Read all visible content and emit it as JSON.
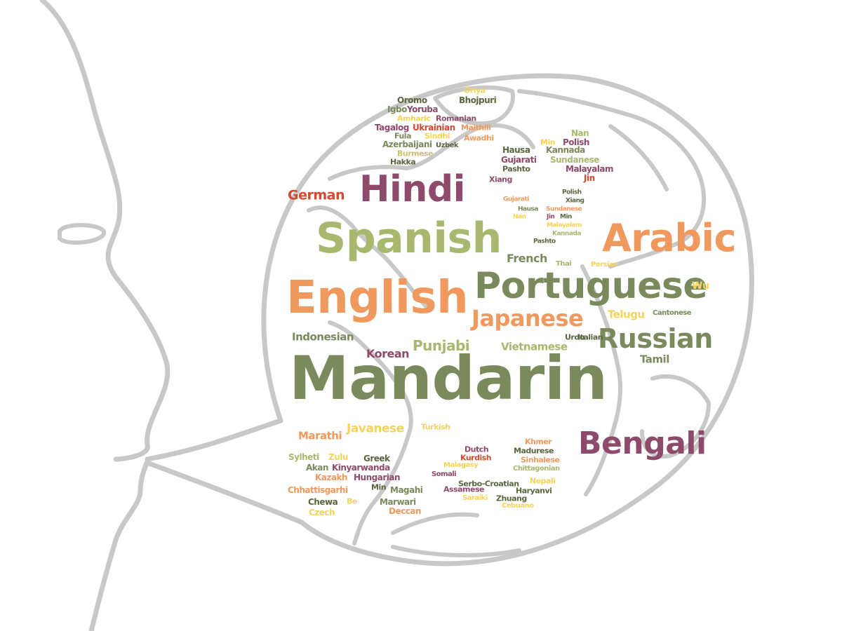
{
  "colors": {
    "outline": "#c8c8c8",
    "palette": [
      "#7a8a5c",
      "#8e4a6a",
      "#f0995e",
      "#cfc36a",
      "#a8b86e",
      "#d9472e",
      "#f6d35a",
      "#5a6640"
    ]
  },
  "words": [
    {
      "text": "Mandarin",
      "color": "#7a8a5c",
      "weight": 72
    },
    {
      "text": "English",
      "color": "#f0995e",
      "weight": 56
    },
    {
      "text": "Spanish",
      "color": "#a8b86e",
      "weight": 52
    },
    {
      "text": "Portuguese",
      "color": "#7a8a5c",
      "weight": 46
    },
    {
      "text": "Hindi",
      "color": "#8e4a6a",
      "weight": 46
    },
    {
      "text": "Arabic",
      "color": "#f0995e",
      "weight": 46
    },
    {
      "text": "Bengali",
      "color": "#8e4a6a",
      "weight": 40
    },
    {
      "text": "Russian",
      "color": "#7a8a5c",
      "weight": 34
    },
    {
      "text": "Japanese",
      "color": "#f0995e",
      "weight": 30
    },
    {
      "text": "Punjabi",
      "color": "#a8b86e",
      "weight": 20
    },
    {
      "text": "German",
      "color": "#d9472e",
      "weight": 18
    },
    {
      "text": "Javanese",
      "color": "#f6d35a",
      "weight": 16
    },
    {
      "text": "Korean",
      "color": "#8e4a6a",
      "weight": 16
    },
    {
      "text": "French",
      "color": "#7a8a5c",
      "weight": 16
    },
    {
      "text": "Vietnamese",
      "color": "#a8b86e",
      "weight": 15
    },
    {
      "text": "Tamil",
      "color": "#7a8a5c",
      "weight": 15
    },
    {
      "text": "Telugu",
      "color": "#f6d35a",
      "weight": 15
    },
    {
      "text": "Indonesian",
      "color": "#7a8a5c",
      "weight": 14
    },
    {
      "text": "Marathi",
      "color": "#f0995e",
      "weight": 14
    },
    {
      "text": "Wu",
      "color": "#f6d35a",
      "weight": 14
    },
    {
      "text": "Turkish",
      "color": "#f6d35a",
      "weight": 11
    },
    {
      "text": "Urdu",
      "color": "#5a6640",
      "weight": 11
    },
    {
      "text": "Italian",
      "color": "#5a6640",
      "weight": 11
    },
    {
      "text": "Thai",
      "color": "#a8b86e",
      "weight": 10
    },
    {
      "text": "Persian",
      "color": "#f6d35a",
      "weight": 10
    },
    {
      "text": "Cantonese",
      "color": "#7a8a5c",
      "weight": 10
    },
    {
      "text": "Oriya",
      "color": "#f6d35a",
      "weight": 11
    },
    {
      "text": "Bhojpuri",
      "color": "#5a6640",
      "weight": 12
    },
    {
      "text": "Oromo",
      "color": "#5a6640",
      "weight": 12
    },
    {
      "text": "Igbo",
      "color": "#7a8a5c",
      "weight": 12
    },
    {
      "text": "Yoruba",
      "color": "#8e4a6a",
      "weight": 12
    },
    {
      "text": "Amharic",
      "color": "#f6d35a",
      "weight": 11
    },
    {
      "text": "Romanian",
      "color": "#8e4a6a",
      "weight": 11
    },
    {
      "text": "Tagalog",
      "color": "#8e4a6a",
      "weight": 12
    },
    {
      "text": "Ukrainian",
      "color": "#d9472e",
      "weight": 12
    },
    {
      "text": "Maithili",
      "color": "#f0995e",
      "weight": 11
    },
    {
      "text": "Fula",
      "color": "#7a8a5c",
      "weight": 11
    },
    {
      "text": "Sindhi",
      "color": "#f6d35a",
      "weight": 11
    },
    {
      "text": "Awadhi",
      "color": "#f0995e",
      "weight": 11
    },
    {
      "text": "Azerbaijani",
      "color": "#7a8a5c",
      "weight": 12
    },
    {
      "text": "Uzbek",
      "color": "#5a6640",
      "weight": 10
    },
    {
      "text": "Burmese",
      "color": "#cfc36a",
      "weight": 11
    },
    {
      "text": "Hakka",
      "color": "#5a6640",
      "weight": 11
    },
    {
      "text": "Nan",
      "color": "#a8b86e",
      "weight": 12
    },
    {
      "text": "Min",
      "color": "#f6d35a",
      "weight": 11
    },
    {
      "text": "Polish",
      "color": "#8e4a6a",
      "weight": 12
    },
    {
      "text": "Hausa",
      "color": "#5a6640",
      "weight": 12
    },
    {
      "text": "Kannada",
      "color": "#7a8a5c",
      "weight": 12
    },
    {
      "text": "Gujarati",
      "color": "#8e4a6a",
      "weight": 12
    },
    {
      "text": "Sundanese",
      "color": "#a8b86e",
      "weight": 12
    },
    {
      "text": "Pashto",
      "color": "#5a6640",
      "weight": 11
    },
    {
      "text": "Malayalam",
      "color": "#8e4a6a",
      "weight": 12
    },
    {
      "text": "Xiang",
      "color": "#8e4a6a",
      "weight": 11
    },
    {
      "text": "Jin",
      "color": "#d9472e",
      "weight": 12
    },
    {
      "text": "Gujarati",
      "color": "#f0995e",
      "weight": 9
    },
    {
      "text": "Polish",
      "color": "#5a6640",
      "weight": 9
    },
    {
      "text": "Xiang",
      "color": "#5a6640",
      "weight": 9
    },
    {
      "text": "Hausa",
      "color": "#7a8a5c",
      "weight": 9
    },
    {
      "text": "Sundanese",
      "color": "#f0995e",
      "weight": 9
    },
    {
      "text": "Nan",
      "color": "#f6d35a",
      "weight": 9
    },
    {
      "text": "Jin",
      "color": "#8e4a6a",
      "weight": 9
    },
    {
      "text": "Min",
      "color": "#5a6640",
      "weight": 9
    },
    {
      "text": "Malayalam",
      "color": "#f6d35a",
      "weight": 9
    },
    {
      "text": "Kannada",
      "color": "#a8b86e",
      "weight": 9
    },
    {
      "text": "Pashto",
      "color": "#5a6640",
      "weight": 9
    },
    {
      "text": "Sylheti",
      "color": "#a8b86e",
      "weight": 12
    },
    {
      "text": "Zulu",
      "color": "#f6d35a",
      "weight": 12
    },
    {
      "text": "Greek",
      "color": "#5a6640",
      "weight": 12
    },
    {
      "text": "Akan",
      "color": "#7a8a5c",
      "weight": 12
    },
    {
      "text": "Kinyarwanda",
      "color": "#8e4a6a",
      "weight": 12
    },
    {
      "text": "Kazakh",
      "color": "#f0995e",
      "weight": 12
    },
    {
      "text": "Hungarian",
      "color": "#8e4a6a",
      "weight": 12
    },
    {
      "text": "Chhattisgarhi",
      "color": "#f0995e",
      "weight": 12
    },
    {
      "text": "Min",
      "color": "#5a6640",
      "weight": 11
    },
    {
      "text": "Magahi",
      "color": "#7a8a5c",
      "weight": 12
    },
    {
      "text": "Chewa",
      "color": "#5a6640",
      "weight": 12
    },
    {
      "text": "Be",
      "color": "#f6d35a",
      "weight": 11
    },
    {
      "text": "Marwari",
      "color": "#7a8a5c",
      "weight": 12
    },
    {
      "text": "Czech",
      "color": "#f6d35a",
      "weight": 12
    },
    {
      "text": "Deccan",
      "color": "#f0995e",
      "weight": 12
    },
    {
      "text": "Dutch",
      "color": "#8e4a6a",
      "weight": 11
    },
    {
      "text": "Kurdish",
      "color": "#d9472e",
      "weight": 11
    },
    {
      "text": "Malagasy",
      "color": "#f6d35a",
      "weight": 10
    },
    {
      "text": "Somali",
      "color": "#8e4a6a",
      "weight": 10
    },
    {
      "text": "Khmer",
      "color": "#f0995e",
      "weight": 11
    },
    {
      "text": "Madurese",
      "color": "#5a6640",
      "weight": 11
    },
    {
      "text": "Sinhalese",
      "color": "#f0995e",
      "weight": 11
    },
    {
      "text": "Chittagonian",
      "color": "#a8b86e",
      "weight": 10
    },
    {
      "text": "Serbo-Croatian",
      "color": "#5a6640",
      "weight": 11
    },
    {
      "text": "Nepali",
      "color": "#f6d35a",
      "weight": 11
    },
    {
      "text": "Assamese",
      "color": "#8e4a6a",
      "weight": 11
    },
    {
      "text": "Haryanvi",
      "color": "#5a6640",
      "weight": 11
    },
    {
      "text": "Saraiki",
      "color": "#f6d35a",
      "weight": 10
    },
    {
      "text": "Zhuang",
      "color": "#5a6640",
      "weight": 11
    },
    {
      "text": "Cebuano",
      "color": "#f6d35a",
      "weight": 10
    }
  ]
}
